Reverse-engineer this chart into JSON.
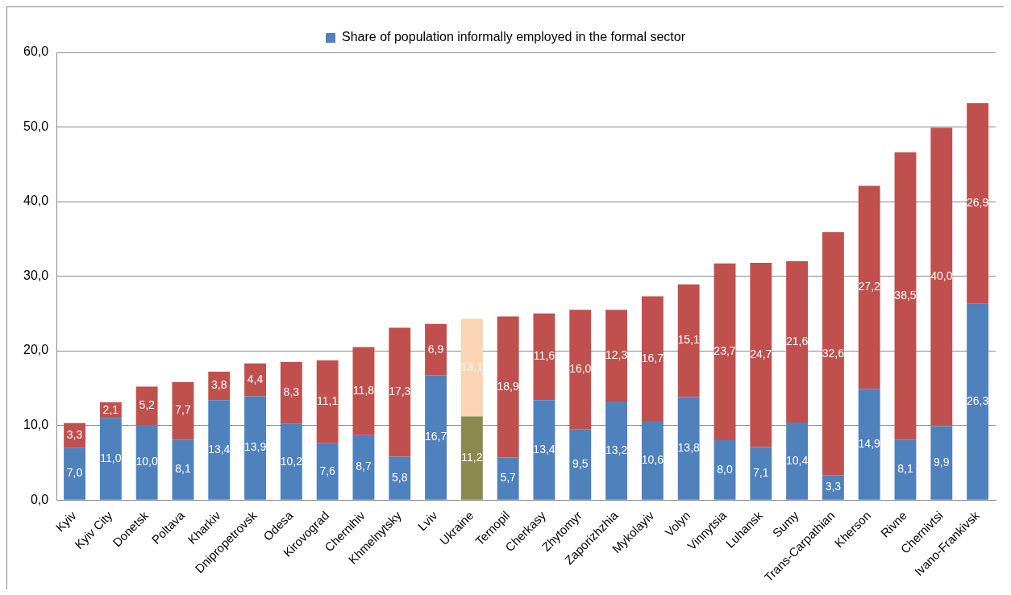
{
  "chart_data": {
    "type": "bar",
    "stacked": true,
    "legend": "top",
    "grid": "y",
    "categories": [
      "Kyiv",
      "Kyiv City",
      "Donetsk",
      "Poltava",
      "Kharkiv",
      "Dnipropetrovsk",
      "Odesa",
      "Kirovograd",
      "Chernihiv",
      "Khmelnytsky",
      "Lviv",
      "Ukraine",
      "Ternopil",
      "Cherkasy",
      "Zhytomyr",
      "Zaporizhzhia",
      "Mykolayiv",
      "Volyn",
      "Vinnytsia",
      "Luhansk",
      "Sumy",
      "Trans-Carpathian",
      "Kherson",
      "Rivne",
      "Chernivtsi",
      "Ivano-Frankivsk"
    ],
    "ylim": [
      0,
      60
    ],
    "yticks": [
      {
        "value": 0,
        "label": "0,0"
      },
      {
        "value": 10,
        "label": "10,0"
      },
      {
        "value": 20,
        "label": "20,0"
      },
      {
        "value": 30,
        "label": "30,0"
      },
      {
        "value": 40,
        "label": "40,0"
      },
      {
        "value": 50,
        "label": "50,0"
      },
      {
        "value": 60,
        "label": "60,0"
      }
    ],
    "series": [
      {
        "name": "Share of population informally employed in the formal sector",
        "color": "#4f81bd",
        "colors": [
          "#4f81bd",
          "#4f81bd",
          "#4f81bd",
          "#4f81bd",
          "#4f81bd",
          "#4f81bd",
          "#4f81bd",
          "#4f81bd",
          "#4f81bd",
          "#4f81bd",
          "#4f81bd",
          "#8b8a4e",
          "#4f81bd",
          "#4f81bd",
          "#4f81bd",
          "#4f81bd",
          "#4f81bd",
          "#4f81bd",
          "#4f81bd",
          "#4f81bd",
          "#4f81bd",
          "#4f81bd",
          "#4f81bd",
          "#4f81bd",
          "#4f81bd",
          "#4f81bd"
        ],
        "values": [
          7.0,
          11.0,
          10.0,
          8.1,
          13.4,
          13.9,
          10.2,
          7.6,
          8.7,
          5.8,
          16.7,
          11.2,
          5.7,
          13.4,
          9.5,
          13.2,
          10.6,
          13.8,
          8.0,
          7.1,
          10.4,
          3.3,
          14.9,
          8.1,
          9.9,
          26.3
        ],
        "value_labels": [
          "7,0",
          "11,0",
          "10,0",
          "8,1",
          "13,4",
          "13,9",
          "10,2",
          "7,6",
          "8,7",
          "5,8",
          "16,7",
          "11,2",
          "5,7",
          "13,4",
          "9,5",
          "13,2",
          "10,6",
          "13,8",
          "8,0",
          "7,1",
          "10,4",
          "3,3",
          "14,9",
          "8,1",
          "9,9",
          "26,3"
        ]
      },
      {
        "color": "#c0504d",
        "colors": [
          "#c0504d",
          "#c0504d",
          "#c0504d",
          "#c0504d",
          "#c0504d",
          "#c0504d",
          "#c0504d",
          "#c0504d",
          "#c0504d",
          "#c0504d",
          "#c0504d",
          "#fcd5b4",
          "#c0504d",
          "#c0504d",
          "#c0504d",
          "#c0504d",
          "#c0504d",
          "#c0504d",
          "#c0504d",
          "#c0504d",
          "#c0504d",
          "#c0504d",
          "#c0504d",
          "#c0504d",
          "#c0504d",
          "#c0504d"
        ],
        "values": [
          3.3,
          2.1,
          5.2,
          7.7,
          3.8,
          4.4,
          8.3,
          11.1,
          11.8,
          17.3,
          6.9,
          13.1,
          18.9,
          11.6,
          16.0,
          12.3,
          16.7,
          15.1,
          23.7,
          24.7,
          21.6,
          32.6,
          27.2,
          38.5,
          40.0,
          26.9
        ],
        "value_labels": [
          "3,3",
          "2,1",
          "5,2",
          "7,7",
          "3,8",
          "4,4",
          "8,3",
          "11,1",
          "11,8",
          "17,3",
          "6,9",
          "13,1",
          "18,9",
          "11,6",
          "16,0",
          "12,3",
          "16,7",
          "15,1",
          "23,7",
          "24,7",
          "21,6",
          "32,6",
          "27,2",
          "38,5",
          "40,0",
          "26,9"
        ]
      }
    ]
  }
}
